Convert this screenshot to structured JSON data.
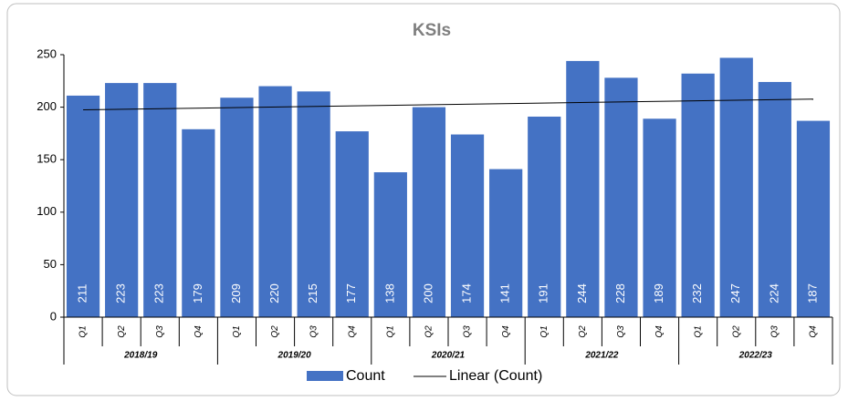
{
  "chart_data": {
    "type": "bar",
    "title": "KSIs",
    "categories": [
      "Q1",
      "Q2",
      "Q3",
      "Q4",
      "Q1",
      "Q2",
      "Q3",
      "Q4",
      "Q1",
      "Q2",
      "Q3",
      "Q4",
      "Q1",
      "Q2",
      "Q3",
      "Q4",
      "Q1",
      "Q2",
      "Q3",
      "Q4"
    ],
    "groups": [
      "2018/19",
      "2019/20",
      "2020/21",
      "2021/22",
      "2022/23"
    ],
    "series": [
      {
        "name": "Count",
        "color": "#4472c4",
        "values": [
          211,
          223,
          223,
          179,
          209,
          220,
          215,
          177,
          138,
          200,
          174,
          141,
          191,
          244,
          228,
          189,
          232,
          247,
          224,
          187
        ]
      }
    ],
    "trendline": {
      "name": "Linear (Count)",
      "color": "#000000"
    },
    "ylim": [
      0,
      250
    ],
    "yticks": [
      0,
      50,
      100,
      150,
      200,
      250
    ],
    "grid": false,
    "legend": "bottom"
  }
}
